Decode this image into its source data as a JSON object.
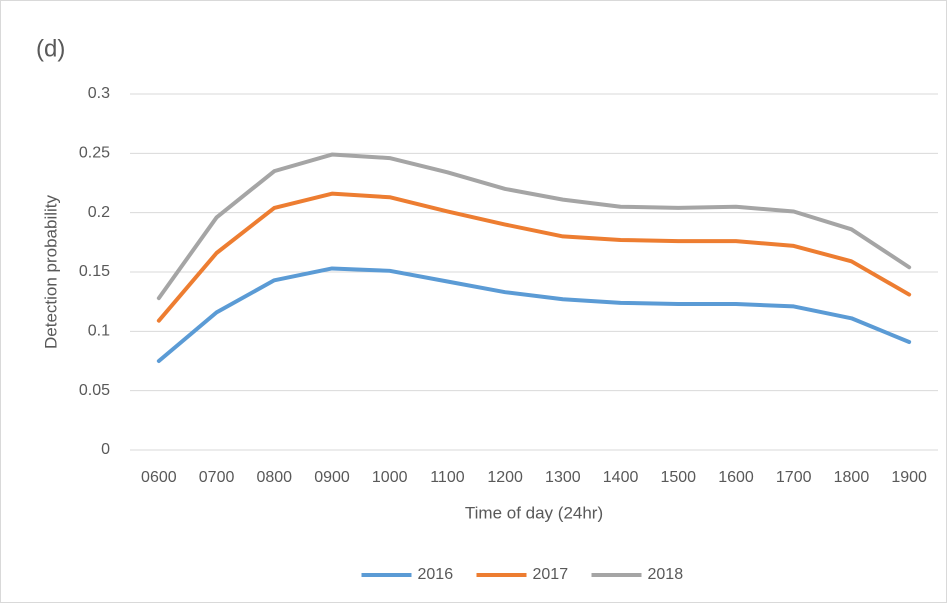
{
  "chart_data": {
    "type": "line",
    "title": "(d)",
    "x_label": "Time of day (24hr)",
    "y_label": "Detection probability",
    "categories": [
      "0600",
      "0700",
      "0800",
      "0900",
      "1000",
      "1100",
      "1200",
      "1300",
      "1400",
      "1500",
      "1600",
      "1700",
      "1800",
      "1900"
    ],
    "series": [
      {
        "name": "2016",
        "color": "#5b9bd5",
        "values": [
          0.075,
          0.116,
          0.143,
          0.153,
          0.151,
          0.142,
          0.133,
          0.127,
          0.124,
          0.123,
          0.123,
          0.121,
          0.111,
          0.091
        ]
      },
      {
        "name": "2017",
        "color": "#ed7d31",
        "values": [
          0.109,
          0.166,
          0.204,
          0.216,
          0.213,
          0.201,
          0.19,
          0.18,
          0.177,
          0.176,
          0.176,
          0.172,
          0.159,
          0.131
        ]
      },
      {
        "name": "2018",
        "color": "#a5a5a5",
        "values": [
          0.128,
          0.196,
          0.235,
          0.249,
          0.246,
          0.234,
          0.22,
          0.211,
          0.205,
          0.204,
          0.205,
          0.201,
          0.186,
          0.154
        ]
      }
    ],
    "ylim": [
      0,
      0.3
    ],
    "yticks": [
      0,
      0.05,
      0.1,
      0.15,
      0.2,
      0.25,
      0.3
    ],
    "grid": true,
    "legend": "bottom"
  }
}
